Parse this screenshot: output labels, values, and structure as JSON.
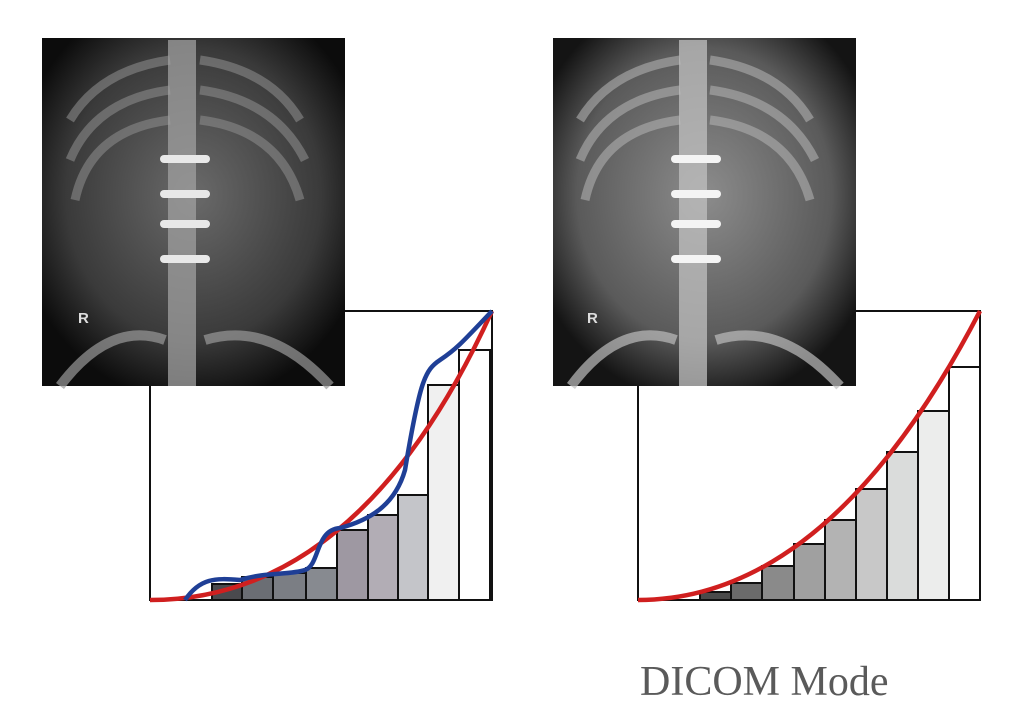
{
  "images": [
    {
      "marker": "R"
    },
    {
      "marker": "R"
    }
  ],
  "caption": "DICOM Mode"
}
